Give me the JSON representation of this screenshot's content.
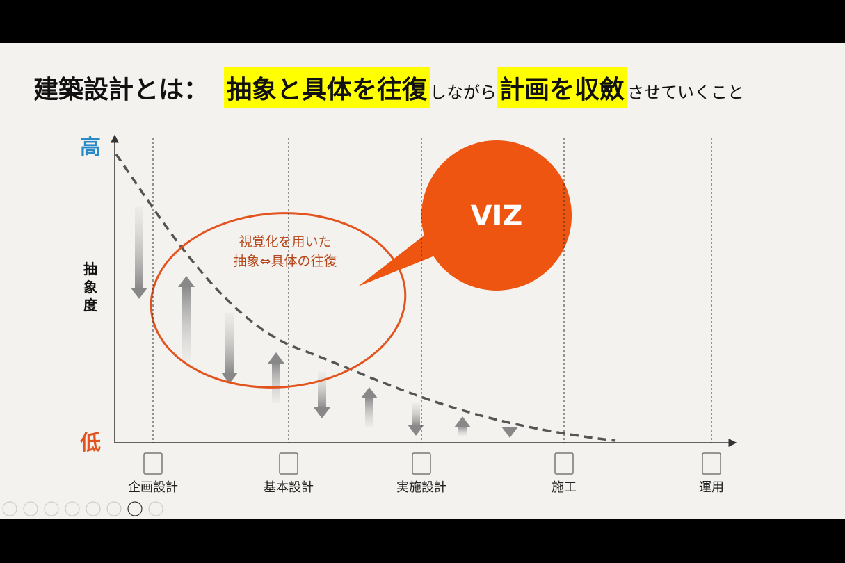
{
  "title": {
    "lead": "建築設計とは：",
    "segments": [
      {
        "text": "抽象と具体を往復",
        "emphasis": true
      },
      {
        "text": "しながら",
        "emphasis": false
      },
      {
        "text": "計画を収斂",
        "emphasis": true
      },
      {
        "text": "させていくこと",
        "emphasis": false
      }
    ]
  },
  "y_axis": {
    "high": "高",
    "low": "低",
    "label": [
      "抽",
      "象",
      "度"
    ]
  },
  "callout": {
    "lines": [
      "視覚化を用いた",
      "抽象⇔具体の往復"
    ]
  },
  "bubble": "VIZ",
  "phases": [
    "企画設計",
    "基本設計",
    "実施設計",
    "施工",
    "運用"
  ]
}
